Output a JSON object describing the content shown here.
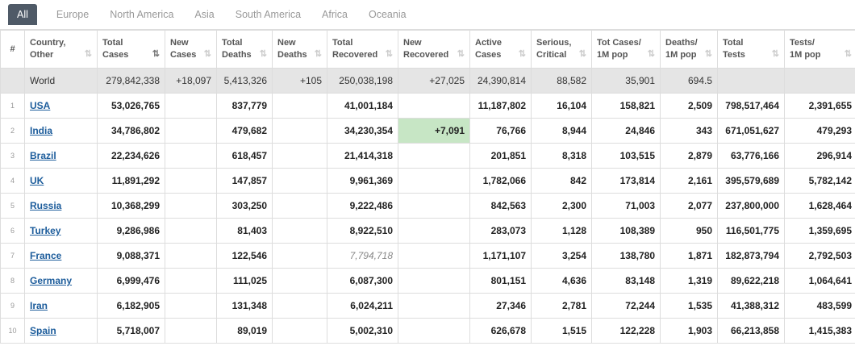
{
  "tabs": [
    "All",
    "Europe",
    "North America",
    "Asia",
    "South America",
    "Africa",
    "Oceania"
  ],
  "headers": [
    {
      "l1": "#",
      "l2": "",
      "sort": false
    },
    {
      "l1": "Country,",
      "l2": "Other",
      "sort": true
    },
    {
      "l1": "Total",
      "l2": "Cases",
      "sort": true,
      "active": true
    },
    {
      "l1": "New",
      "l2": "Cases",
      "sort": true
    },
    {
      "l1": "Total",
      "l2": "Deaths",
      "sort": true
    },
    {
      "l1": "New",
      "l2": "Deaths",
      "sort": true
    },
    {
      "l1": "Total",
      "l2": "Recovered",
      "sort": true
    },
    {
      "l1": "New",
      "l2": "Recovered",
      "sort": true
    },
    {
      "l1": "Active",
      "l2": "Cases",
      "sort": true
    },
    {
      "l1": "Serious,",
      "l2": "Critical",
      "sort": true
    },
    {
      "l1": "Tot Cases/",
      "l2": "1M pop",
      "sort": true
    },
    {
      "l1": "Deaths/",
      "l2": "1M pop",
      "sort": true
    },
    {
      "l1": "Total",
      "l2": "Tests",
      "sort": true
    },
    {
      "l1": "Tests/",
      "l2": "1M pop",
      "sort": true
    }
  ],
  "world": [
    "",
    "World",
    "279,842,338",
    "+18,097",
    "5,413,326",
    "+105",
    "250,038,198",
    "+27,025",
    "24,390,814",
    "88,582",
    "35,901",
    "694.5",
    "",
    ""
  ],
  "rows": [
    [
      "1",
      "USA",
      "53,026,765",
      "",
      "837,779",
      "",
      "41,001,184",
      "",
      "11,187,802",
      "16,104",
      "158,821",
      "2,509",
      "798,517,464",
      "2,391,655"
    ],
    [
      "2",
      "India",
      "34,786,802",
      "",
      "479,682",
      "",
      "34,230,354",
      "+7,091",
      "76,766",
      "8,944",
      "24,846",
      "343",
      "671,051,627",
      "479,293"
    ],
    [
      "3",
      "Brazil",
      "22,234,626",
      "",
      "618,457",
      "",
      "21,414,318",
      "",
      "201,851",
      "8,318",
      "103,515",
      "2,879",
      "63,776,166",
      "296,914"
    ],
    [
      "4",
      "UK",
      "11,891,292",
      "",
      "147,857",
      "",
      "9,961,369",
      "",
      "1,782,066",
      "842",
      "173,814",
      "2,161",
      "395,579,689",
      "5,782,142"
    ],
    [
      "5",
      "Russia",
      "10,368,299",
      "",
      "303,250",
      "",
      "9,222,486",
      "",
      "842,563",
      "2,300",
      "71,003",
      "2,077",
      "237,800,000",
      "1,628,464"
    ],
    [
      "6",
      "Turkey",
      "9,286,986",
      "",
      "81,403",
      "",
      "8,922,510",
      "",
      "283,073",
      "1,128",
      "108,389",
      "950",
      "116,501,775",
      "1,359,695"
    ],
    [
      "7",
      "France",
      "9,088,371",
      "",
      "122,546",
      "",
      "7,794,718",
      "",
      "1,171,107",
      "3,254",
      "138,780",
      "1,871",
      "182,873,794",
      "2,792,503"
    ],
    [
      "8",
      "Germany",
      "6,999,476",
      "",
      "111,025",
      "",
      "6,087,300",
      "",
      "801,151",
      "4,636",
      "83,148",
      "1,319",
      "89,622,218",
      "1,064,641"
    ],
    [
      "9",
      "Iran",
      "6,182,905",
      "",
      "131,348",
      "",
      "6,024,211",
      "",
      "27,346",
      "2,781",
      "72,244",
      "1,535",
      "41,388,312",
      "483,599"
    ],
    [
      "10",
      "Spain",
      "5,718,007",
      "",
      "89,019",
      "",
      "5,002,310",
      "",
      "626,678",
      "1,515",
      "122,228",
      "1,903",
      "66,213,858",
      "1,415,383"
    ]
  ],
  "highlight_color": "#c7e6c5",
  "link_color": "#1c5c9b"
}
